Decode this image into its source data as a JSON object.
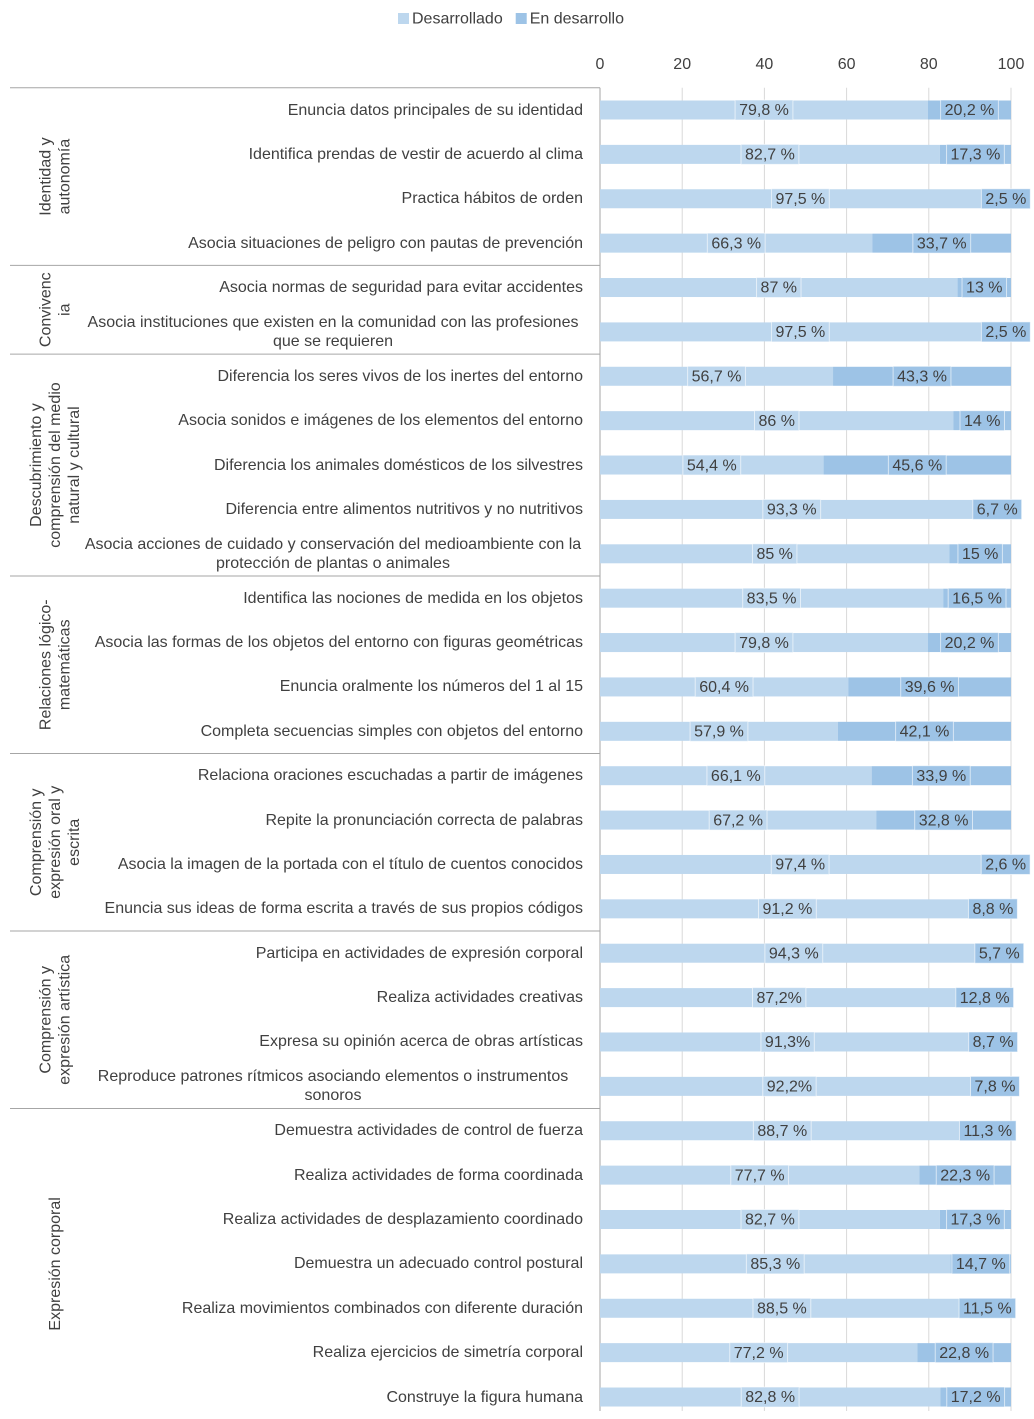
{
  "chart_data": {
    "type": "stacked-bar-horizontal",
    "categories": [
      "Enuncia datos principales de su identidad",
      "Identifica prendas de vestir de acuerdo al clima",
      "Practica hábitos de orden",
      "Asocia situaciones de peligro con pautas de prevención",
      "Asocia normas de seguridad para evitar accidentes",
      "Asocia instituciones que existen en la comunidad con las profesiones que se requieren",
      "Diferencia los seres vivos de los inertes del entorno",
      "Asocia sonidos e imágenes de los elementos del entorno",
      "Diferencia los animales domésticos de los silvestres",
      "Diferencia entre alimentos nutritivos y no nutritivos",
      "Asocia acciones de cuidado y conservación del medioambiente con la protección de plantas o animales",
      "Identifica las nociones de medida en los objetos",
      "Asocia las formas de los objetos del entorno con figuras geométricas",
      "Enuncia oralmente los números del 1 al 15",
      "Completa secuencias simples con objetos del entorno",
      "Relaciona oraciones escuchadas a partir de imágenes",
      "Repite la pronunciación correcta de palabras",
      "Asocia la imagen de la portada con el título de cuentos conocidos",
      "Enuncia sus ideas de forma escrita a través de sus propios códigos",
      "Participa en actividades de expresión corporal",
      "Realiza actividades creativas",
      "Expresa su opinión acerca de obras artísticas",
      "Reproduce patrones rítmicos asociando elementos o instrumentos sonoros",
      "Demuestra actividades de control de fuerza",
      "Realiza actividades de forma coordinada",
      "Realiza actividades de desplazamiento coordinado",
      "Demuestra un adecuado control postural",
      "Realiza movimientos combinados con diferente duración",
      "Realiza ejercicios de simetría corporal",
      "Construye la figura humana"
    ],
    "groups": [
      {
        "label": [
          "Identidad y",
          "autonomía"
        ],
        "count": 4
      },
      {
        "label": [
          "Convivenc",
          "ia"
        ],
        "count": 2
      },
      {
        "label": [
          "Descubrimiento y",
          "comprensión del medio",
          "natural y cultural"
        ],
        "count": 5
      },
      {
        "label": [
          "Relaciones lógico-",
          "matemáticas"
        ],
        "count": 4
      },
      {
        "label": [
          "Comprensión y",
          "expresión oral y",
          "escrita"
        ],
        "count": 4
      },
      {
        "label": [
          "Comprensión y",
          "expresión artística"
        ],
        "count": 4
      },
      {
        "label": [
          "Expresión corporal"
        ],
        "count": 7
      }
    ],
    "series": [
      {
        "name": "Desarrollado",
        "color": "#bdd7ee",
        "values": [
          79.8,
          82.7,
          97.5,
          66.3,
          87,
          97.5,
          56.7,
          86,
          54.4,
          93.3,
          85,
          83.5,
          79.8,
          60.4,
          57.9,
          66.1,
          67.2,
          97.4,
          91.2,
          94.3,
          87.2,
          91.3,
          92.2,
          88.7,
          77.7,
          82.7,
          85.3,
          88.5,
          77.2,
          82.8
        ],
        "value_labels": [
          "79,8 %",
          "82,7 %",
          "97,5 %",
          "66,3 %",
          "87 %",
          "97,5 %",
          "56,7 %",
          "86 %",
          "54,4 %",
          "93,3 %",
          "85 %",
          "83,5 %",
          "79,8 %",
          "60,4 %",
          "57,9 %",
          "66,1 %",
          "67,2 %",
          "97,4 %",
          "91,2 %",
          "94,3 %",
          "87,2%",
          "91,3%",
          "92,2%",
          "88,7 %",
          "77,7 %",
          "82,7 %",
          "85,3 %",
          "88,5 %",
          "77,2 %",
          "82,8 %"
        ]
      },
      {
        "name": "En desarrollo",
        "color": "#9dc3e6",
        "values": [
          20.2,
          17.3,
          2.5,
          33.7,
          13,
          2.5,
          43.3,
          14,
          45.6,
          6.7,
          15,
          16.5,
          20.2,
          39.6,
          42.1,
          33.9,
          32.8,
          2.6,
          8.8,
          5.7,
          12.8,
          8.7,
          7.8,
          11.3,
          22.3,
          17.3,
          14.7,
          11.5,
          22.8,
          17.2
        ],
        "value_labels": [
          "20,2 %",
          "17,3 %",
          "2,5 %",
          "33,7 %",
          "13 %",
          "2,5 %",
          "43,3 %",
          "14 %",
          "45,6 %",
          "6,7 %",
          "15 %",
          "16,5 %",
          "20,2 %",
          "39,6 %",
          "42,1 %",
          "33,9 %",
          "32,8 %",
          "2,6 %",
          "8,8 %",
          "5,7 %",
          "12,8 %",
          "8,7 %",
          "7,8 %",
          "11,3 %",
          "22,3 %",
          "17,3 %",
          "14,7 %",
          "11,5 %",
          "22,8 %",
          "17,2 %"
        ]
      }
    ],
    "xlim": [
      0,
      100
    ],
    "xticks": [
      0,
      20,
      40,
      60,
      80,
      100
    ],
    "grid": true,
    "legend": "top"
  }
}
